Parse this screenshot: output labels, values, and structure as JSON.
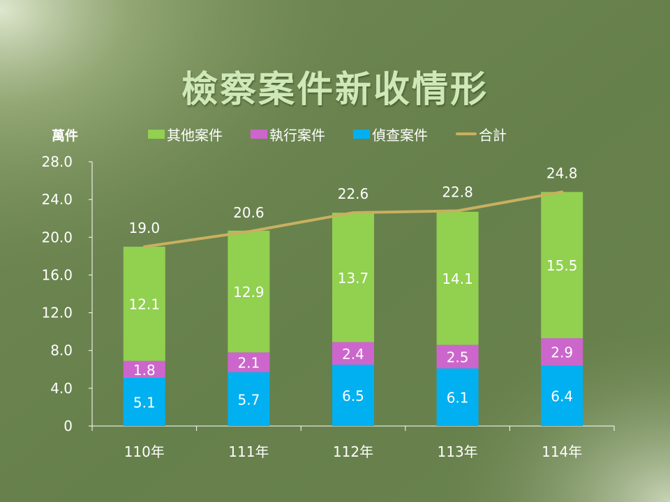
{
  "slide": {
    "title": "檢察案件新收情形",
    "unit_label": "萬件"
  },
  "colors": {
    "other": "#92d050",
    "execution": "#cc66cc",
    "investigation": "#00b0f0",
    "total": "#c8b060"
  },
  "chart_data": {
    "type": "bar",
    "stacked": true,
    "categories": [
      "110年",
      "111年",
      "112年",
      "113年",
      "114年"
    ],
    "series": [
      {
        "name": "偵查案件",
        "values": [
          5.1,
          5.7,
          6.5,
          6.1,
          6.4
        ]
      },
      {
        "name": "執行案件",
        "values": [
          1.8,
          2.1,
          2.4,
          2.5,
          2.9
        ]
      },
      {
        "name": "其他案件",
        "values": [
          12.1,
          12.9,
          13.7,
          14.1,
          15.5
        ]
      }
    ],
    "line_series": {
      "name": "合計",
      "values": [
        19.0,
        20.6,
        22.6,
        22.8,
        24.8
      ]
    },
    "y_ticks": [
      "0",
      "4.0",
      "8.0",
      "12.0",
      "16.0",
      "20.0",
      "24.0",
      "28.0"
    ],
    "ylim": [
      0,
      28
    ],
    "legend_position": "top",
    "grid": false
  }
}
